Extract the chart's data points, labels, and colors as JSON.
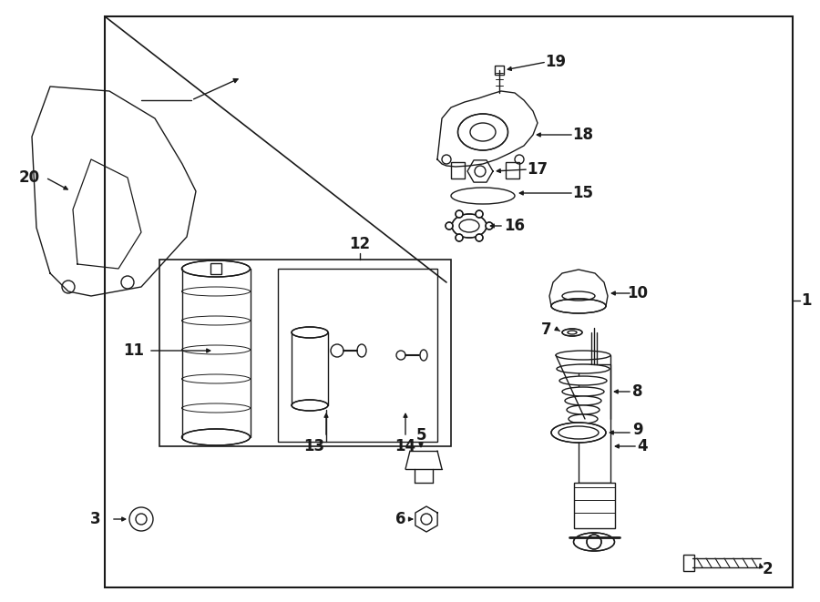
{
  "bg_color": "#ffffff",
  "line_color": "#1a1a1a",
  "fig_w": 9.0,
  "fig_h": 6.61,
  "dpi": 100
}
